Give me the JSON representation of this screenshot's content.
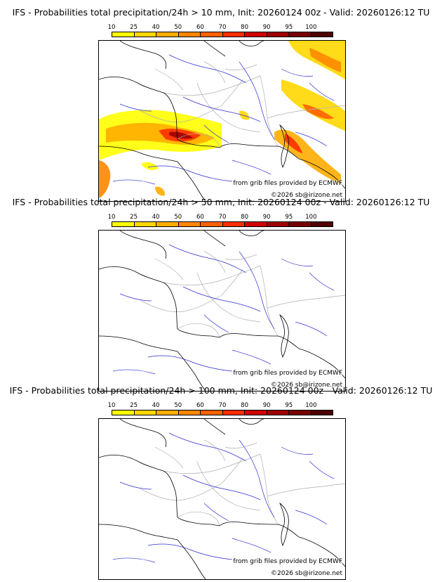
{
  "colors": {
    "legend": [
      "#ffff00",
      "#ffd700",
      "#ffad00",
      "#ff8700",
      "#ff6100",
      "#ff2d00",
      "#d20000",
      "#a00000",
      "#780000",
      "#500000"
    ],
    "coast": "#000000",
    "rivers": "#3030d0",
    "borders": "#b0b0b0"
  },
  "legend": {
    "ticks": [
      "10",
      "25",
      "40",
      "50",
      "60",
      "70",
      "80",
      "90",
      "95",
      "100"
    ]
  },
  "credits": {
    "source": "from grib files provided by ECMWF",
    "copyright": "©2026 sb@irizone.net"
  },
  "panels": [
    {
      "title": "IFS - Probabilities total precipitation/24h > 10 mm, Init: 20260124 00z - Valid: 20260126:12 TU"
    },
    {
      "title": "IFS - Probabilities total precipitation/24h > 50 mm, Init: 20260124 00z - Valid: 20260126:12 TU"
    },
    {
      "title": "IFS - Probabilities total precipitation/24h > 100 mm, Init: 20260124 00z - Valid: 20260126:12 TU"
    }
  ]
}
